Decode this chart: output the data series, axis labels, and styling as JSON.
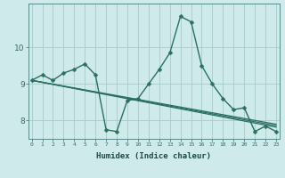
{
  "xlabel": "Humidex (Indice chaleur)",
  "background_color": "#ceeaea",
  "grid_color": "#aacaca",
  "line_color": "#2a7060",
  "x_ticks": [
    0,
    1,
    2,
    3,
    4,
    5,
    6,
    7,
    8,
    9,
    10,
    11,
    12,
    13,
    14,
    15,
    16,
    17,
    18,
    19,
    20,
    21,
    22,
    23
  ],
  "ylim": [
    7.5,
    11.2
  ],
  "xlim": [
    -0.3,
    23.3
  ],
  "yticks": [
    8,
    9,
    10
  ],
  "series": [
    {
      "x": [
        0,
        1,
        2,
        3,
        4,
        5,
        6,
        7,
        8,
        9,
        10,
        11,
        12,
        13,
        14,
        15,
        16,
        17,
        18,
        19,
        20,
        21,
        22,
        23
      ],
      "y": [
        9.1,
        9.25,
        9.1,
        9.3,
        9.4,
        9.55,
        9.25,
        7.75,
        7.7,
        8.55,
        8.6,
        9.0,
        9.4,
        9.85,
        10.85,
        10.7,
        9.5,
        9.0,
        8.6,
        8.3,
        8.35,
        7.7,
        7.85,
        7.7
      ],
      "marker": "D",
      "markersize": 2.5,
      "linewidth": 1.0,
      "has_marker": true
    },
    {
      "x": [
        0,
        23
      ],
      "y": [
        9.1,
        7.82
      ],
      "has_marker": false,
      "linewidth": 0.9
    },
    {
      "x": [
        0,
        23
      ],
      "y": [
        9.1,
        7.86
      ],
      "has_marker": false,
      "linewidth": 0.9
    },
    {
      "x": [
        0,
        23
      ],
      "y": [
        9.1,
        7.9
      ],
      "has_marker": false,
      "linewidth": 0.9
    }
  ]
}
